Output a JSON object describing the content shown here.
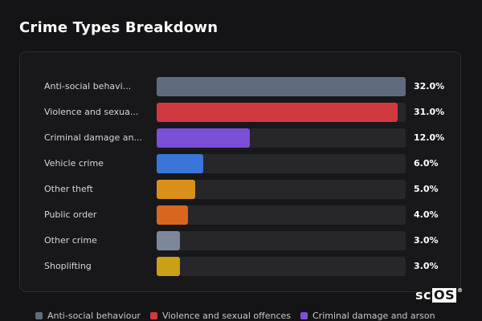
{
  "title": "Crime Types Breakdown",
  "chart_data": {
    "type": "bar",
    "orientation": "horizontal",
    "title": "Crime Types Breakdown",
    "xlim": [
      0,
      32
    ],
    "categories": [
      {
        "label": "Anti-social behavi...",
        "full_name": "Anti-social behaviour",
        "value": 32.0,
        "value_label": "32.0%",
        "color": "#5f6b7d"
      },
      {
        "label": "Violence and sexua...",
        "full_name": "Violence and sexual offences",
        "value": 31.0,
        "value_label": "31.0%",
        "color": "#d0393f"
      },
      {
        "label": "Criminal damage an...",
        "full_name": "Criminal damage and arson",
        "value": 12.0,
        "value_label": "12.0%",
        "color": "#7b4fd6"
      },
      {
        "label": "Vehicle crime",
        "value": 6.0,
        "value_label": "6.0%",
        "color": "#3a76d8"
      },
      {
        "label": "Other theft",
        "value": 5.0,
        "value_label": "5.0%",
        "color": "#d9901a"
      },
      {
        "label": "Public order",
        "value": 4.0,
        "value_label": "4.0%",
        "color": "#d9661e"
      },
      {
        "label": "Other crime",
        "value": 3.0,
        "value_label": "3.0%",
        "color": "#7c8799"
      },
      {
        "label": "Shoplifting",
        "value": 3.0,
        "value_label": "3.0%",
        "color": "#c9a016"
      }
    ],
    "legend": [
      {
        "label": "Anti-social behaviour",
        "color": "#5f6b7d"
      },
      {
        "label": "Violence and sexual offences",
        "color": "#d0393f"
      },
      {
        "label": "Criminal damage and arson",
        "color": "#7b4fd6"
      }
    ]
  },
  "logo": {
    "text_a": "sc",
    "text_b": "OS",
    "mark": "®"
  }
}
